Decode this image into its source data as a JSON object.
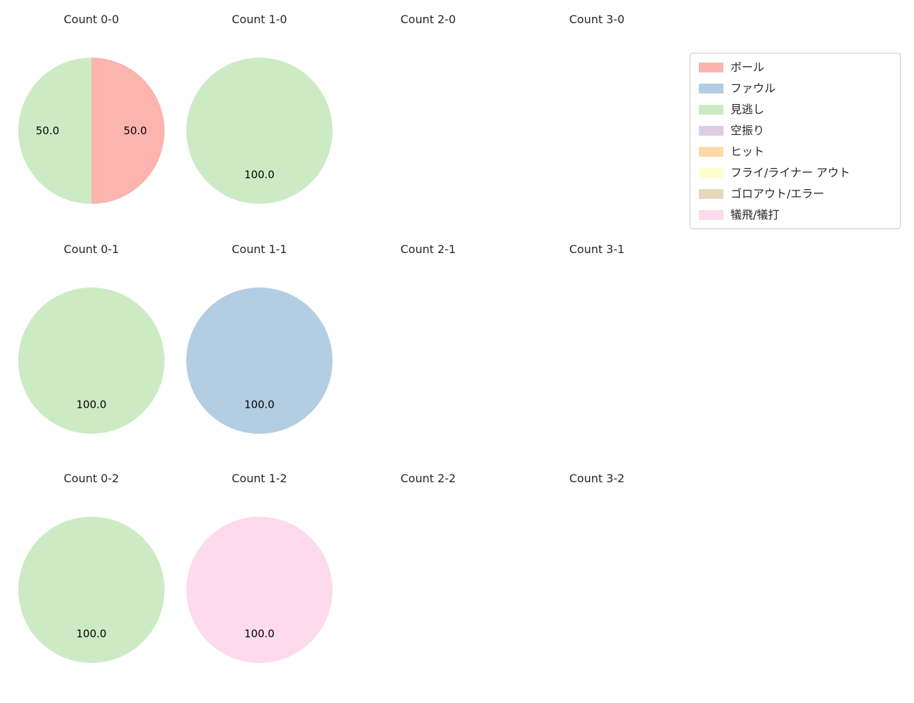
{
  "figure": {
    "background": "#ffffff"
  },
  "legend": {
    "entries": [
      {
        "label": "ボール",
        "color": "#fbb4ae"
      },
      {
        "label": "ファウル",
        "color": "#b3cde3"
      },
      {
        "label": "見逃し",
        "color": "#ccebc5"
      },
      {
        "label": "空振り",
        "color": "#decbe4"
      },
      {
        "label": "ヒット",
        "color": "#fed9a6"
      },
      {
        "label": "フライ/ライナー アウト",
        "color": "#ffffcc"
      },
      {
        "label": "ゴロアウト/エラー",
        "color": "#e5d8bd"
      },
      {
        "label": "犠飛/犠打",
        "color": "#fddaec"
      }
    ]
  },
  "chart_data": {
    "type": "pie",
    "grid": {
      "rows": 3,
      "cols": 4
    },
    "legend_position": "upper right",
    "pies": [
      {
        "title": "Count 0-0",
        "slices": [
          {
            "label": "ボール",
            "value": 50.0
          },
          {
            "label": "見逃し",
            "value": 50.0
          }
        ]
      },
      {
        "title": "Count 1-0",
        "slices": [
          {
            "label": "見逃し",
            "value": 100.0
          }
        ]
      },
      {
        "title": "Count 2-0",
        "slices": []
      },
      {
        "title": "Count 3-0",
        "slices": []
      },
      {
        "title": "Count 0-1",
        "slices": [
          {
            "label": "見逃し",
            "value": 100.0
          }
        ]
      },
      {
        "title": "Count 1-1",
        "slices": [
          {
            "label": "ファウル",
            "value": 100.0
          }
        ]
      },
      {
        "title": "Count 2-1",
        "slices": []
      },
      {
        "title": "Count 3-1",
        "slices": []
      },
      {
        "title": "Count 0-2",
        "slices": [
          {
            "label": "見逃し",
            "value": 100.0
          }
        ]
      },
      {
        "title": "Count 1-2",
        "slices": [
          {
            "label": "犠飛/犠打",
            "value": 100.0
          }
        ]
      },
      {
        "title": "Count 2-2",
        "slices": []
      },
      {
        "title": "Count 3-2",
        "slices": []
      }
    ]
  }
}
